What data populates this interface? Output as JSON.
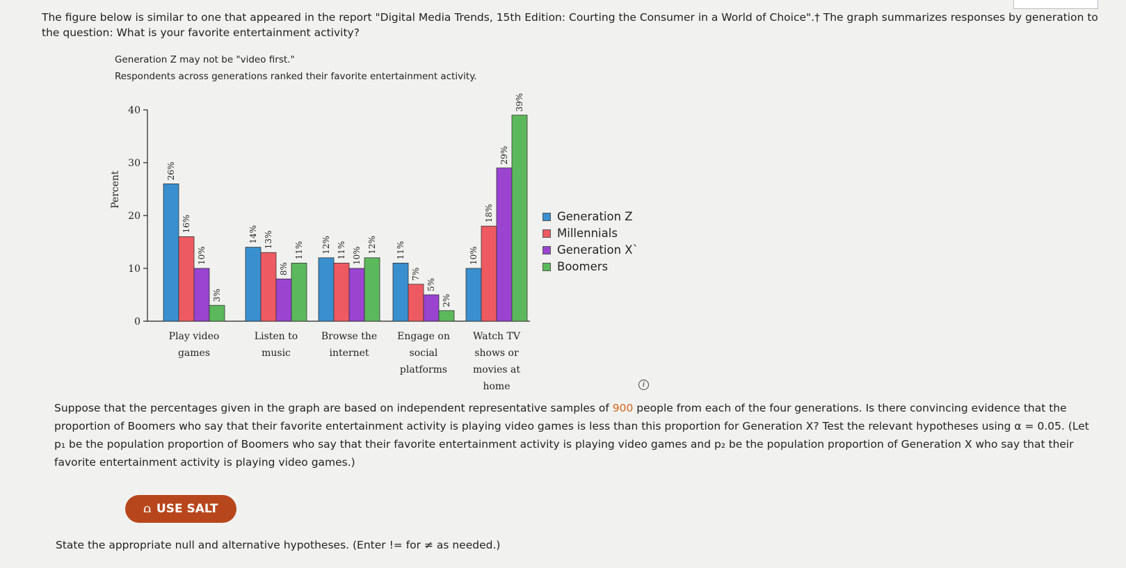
{
  "intro_text": "The figure below is similar to one that appeared in the report \"Digital Media Trends, 15th Edition: Courting the Consumer in a World of Choice\".† The graph summarizes responses by generation to the question: What is your favorite entertainment activity?",
  "chart_data": {
    "type": "bar",
    "title": "Generation Z may not be \"video first.\"",
    "subtitle": "Respondents across generations ranked their favorite entertainment activity.",
    "ylabel": "Percent",
    "xlabel": "",
    "ylim": [
      0,
      40
    ],
    "yticks": [
      "0",
      "10",
      "20",
      "30",
      "40"
    ],
    "grid": false,
    "legend_position": "right",
    "categories": [
      [
        "Play video",
        "games"
      ],
      [
        "Listen to",
        "music"
      ],
      [
        "Browse the",
        "internet"
      ],
      [
        "Engage on",
        "social",
        "platforms"
      ],
      [
        "Watch TV",
        "shows or",
        "movies at",
        "home"
      ]
    ],
    "series": [
      {
        "name": "Generation Z",
        "color": "#3a8fcf",
        "values": [
          26,
          14,
          12,
          11,
          10
        ],
        "labels": [
          "26%",
          "14%",
          "12%",
          "11%",
          "10%"
        ]
      },
      {
        "name": "Millennials",
        "color": "#ee5a62",
        "values": [
          16,
          13,
          11,
          7,
          18
        ],
        "labels": [
          "16%",
          "13%",
          "11%",
          "7%",
          "18%"
        ]
      },
      {
        "name": "Generation X`",
        "color": "#9a44d0",
        "values": [
          10,
          8,
          10,
          5,
          29
        ],
        "labels": [
          "10%",
          "8%",
          "10%",
          "5%",
          "29%"
        ]
      },
      {
        "name": "Boomers",
        "color": "#5cb85c",
        "values": [
          3,
          11,
          12,
          2,
          39
        ],
        "labels": [
          "3%",
          "11%",
          "12%",
          "2%",
          "39%"
        ]
      }
    ]
  },
  "question": {
    "part1": "Suppose that the percentages given in the graph are based on independent representative samples of ",
    "sample_size": "900",
    "part2": " people from each of the four generations. Is there convincing evidence that the proportion of Boomers who say that their favorite entertainment activity is playing video games is less than this proportion for Generation X? Test the relevant hypotheses using α = 0.05. (Let p₁ be the population proportion of Boomers who say that their favorite entertainment activity is playing video games and p₂ be the population proportion of Generation X who say that their favorite entertainment activity is playing video games.)"
  },
  "salt_button_label": "USE SALT",
  "instruction_text": "State the appropriate null and alternative hypotheses. (Enter != for ≠ as needed.)",
  "icons": {
    "salt": "salt-icon",
    "info": "info-icon"
  }
}
